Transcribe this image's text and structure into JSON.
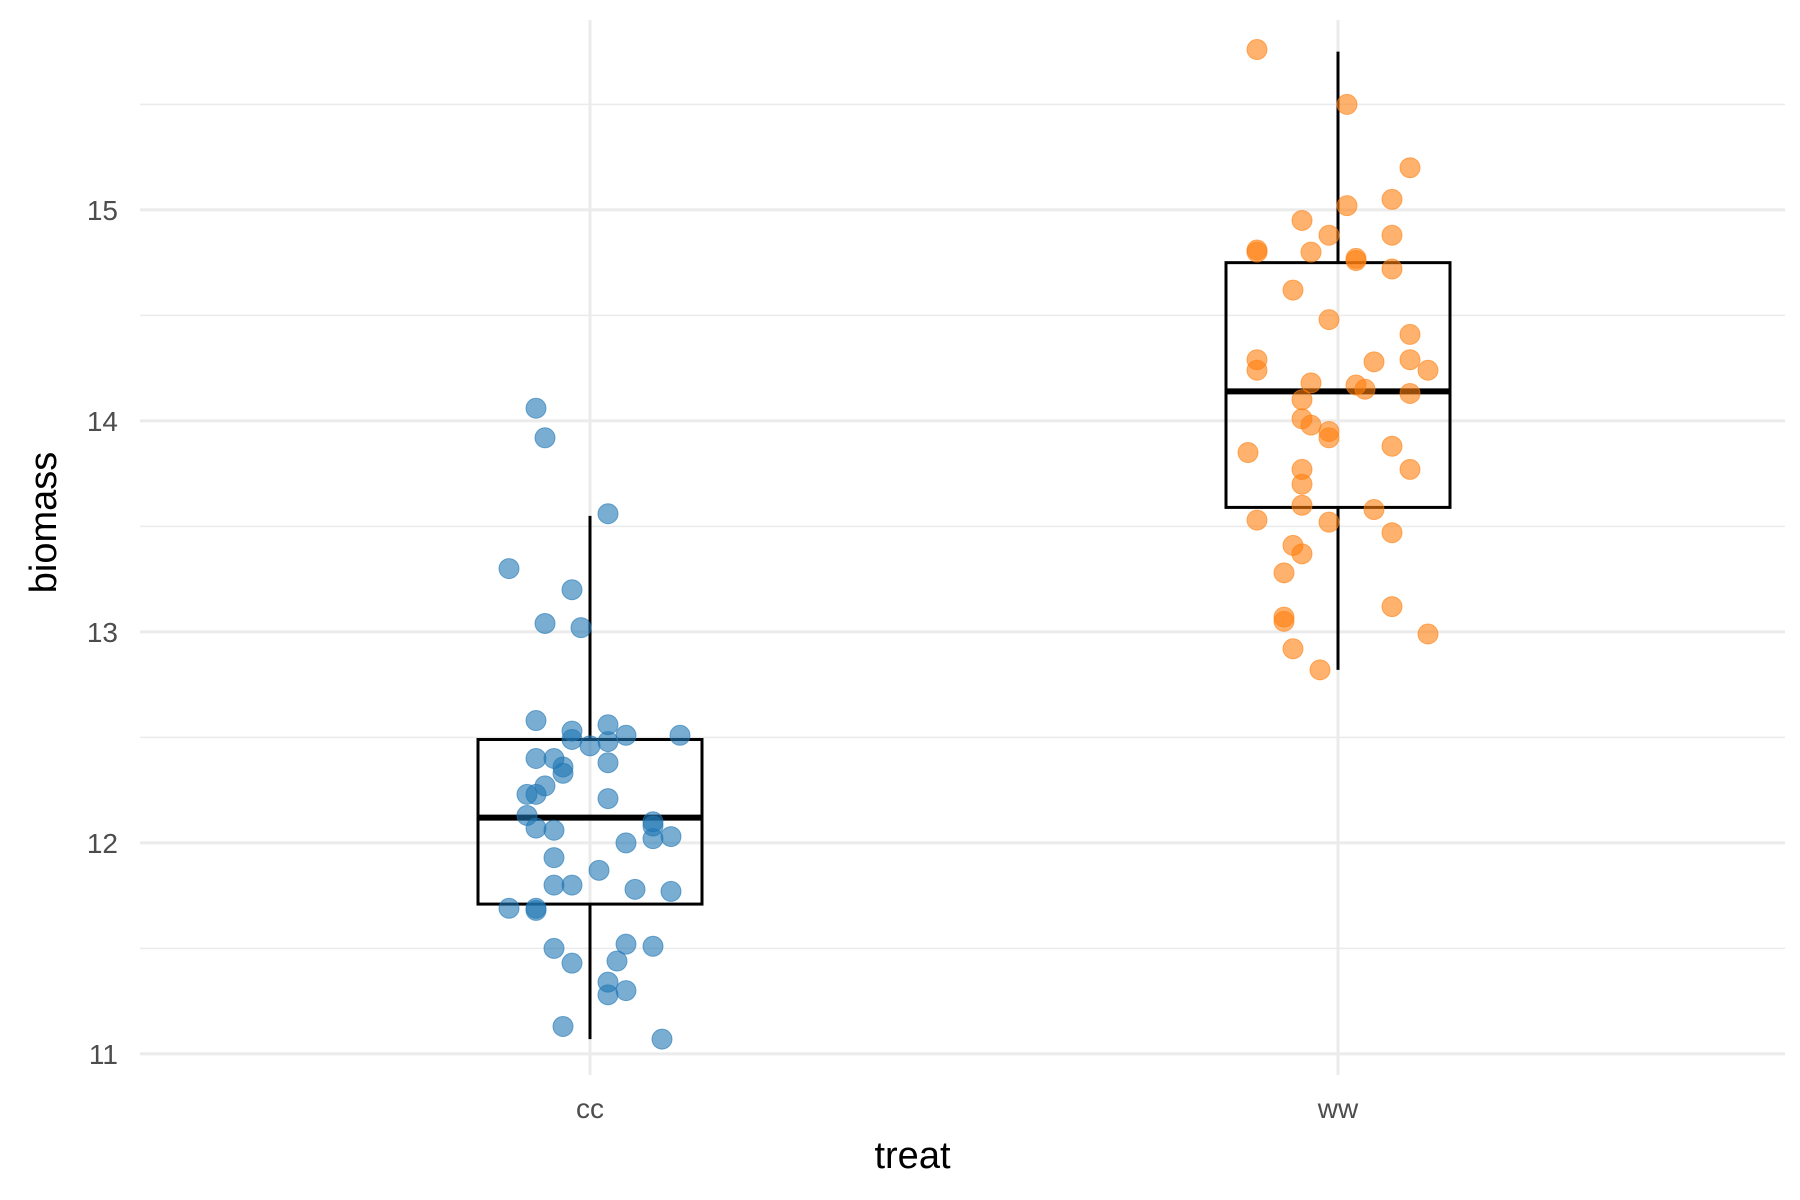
{
  "chart_data": {
    "type": "box-jitter",
    "xlabel": "treat",
    "ylabel": "biomass",
    "categories": [
      "cc",
      "ww"
    ],
    "ylim": [
      10.9,
      15.9
    ],
    "yticks": [
      11,
      12,
      13,
      14,
      15
    ],
    "grid": true,
    "legend": "none",
    "boxes": [
      {
        "category": "cc",
        "min": 11.07,
        "q1": 11.71,
        "median": 12.12,
        "q3": 12.49,
        "max": 13.55
      },
      {
        "category": "ww",
        "min": 12.82,
        "q1": 13.59,
        "median": 14.14,
        "q3": 14.75,
        "max": 15.75
      }
    ],
    "series": [
      {
        "category": "cc",
        "color": "#1f77b4",
        "points": [
          [
            -0.06,
            14.06
          ],
          [
            -0.05,
            13.92
          ],
          [
            0.02,
            13.56
          ],
          [
            -0.09,
            13.3
          ],
          [
            -0.02,
            13.2
          ],
          [
            -0.05,
            13.04
          ],
          [
            -0.01,
            13.02
          ],
          [
            -0.06,
            12.58
          ],
          [
            0.02,
            12.56
          ],
          [
            -0.02,
            12.53
          ],
          [
            0.04,
            12.51
          ],
          [
            0.1,
            12.51
          ],
          [
            -0.02,
            12.49
          ],
          [
            0.0,
            12.46
          ],
          [
            0.02,
            12.48
          ],
          [
            -0.06,
            12.4
          ],
          [
            -0.04,
            12.4
          ],
          [
            -0.03,
            12.36
          ],
          [
            0.02,
            12.38
          ],
          [
            -0.03,
            12.33
          ],
          [
            -0.05,
            12.27
          ],
          [
            -0.07,
            12.23
          ],
          [
            -0.06,
            12.23
          ],
          [
            0.02,
            12.21
          ],
          [
            -0.07,
            12.13
          ],
          [
            0.07,
            12.1
          ],
          [
            0.07,
            12.08
          ],
          [
            -0.06,
            12.07
          ],
          [
            -0.04,
            12.06
          ],
          [
            0.04,
            12.0
          ],
          [
            0.07,
            12.02
          ],
          [
            0.09,
            12.03
          ],
          [
            -0.04,
            11.93
          ],
          [
            0.01,
            11.87
          ],
          [
            -0.04,
            11.8
          ],
          [
            -0.02,
            11.8
          ],
          [
            0.05,
            11.78
          ],
          [
            0.09,
            11.77
          ],
          [
            -0.09,
            11.69
          ],
          [
            -0.06,
            11.68
          ],
          [
            -0.06,
            11.69
          ],
          [
            -0.04,
            11.5
          ],
          [
            0.04,
            11.52
          ],
          [
            0.07,
            11.51
          ],
          [
            -0.02,
            11.43
          ],
          [
            0.03,
            11.44
          ],
          [
            0.02,
            11.34
          ],
          [
            0.02,
            11.28
          ],
          [
            0.04,
            11.3
          ],
          [
            -0.03,
            11.13
          ],
          [
            0.08,
            11.07
          ]
        ]
      },
      {
        "category": "ww",
        "color": "#ff7f0e",
        "points": [
          [
            -0.09,
            15.76
          ],
          [
            0.01,
            15.5
          ],
          [
            0.08,
            15.2
          ],
          [
            0.06,
            15.05
          ],
          [
            0.01,
            15.02
          ],
          [
            -0.04,
            14.95
          ],
          [
            -0.01,
            14.88
          ],
          [
            0.06,
            14.88
          ],
          [
            -0.09,
            14.81
          ],
          [
            -0.09,
            14.8
          ],
          [
            -0.03,
            14.8
          ],
          [
            0.02,
            14.77
          ],
          [
            0.02,
            14.76
          ],
          [
            0.06,
            14.72
          ],
          [
            -0.05,
            14.62
          ],
          [
            -0.01,
            14.48
          ],
          [
            0.08,
            14.41
          ],
          [
            -0.09,
            14.29
          ],
          [
            -0.09,
            14.24
          ],
          [
            0.04,
            14.28
          ],
          [
            0.08,
            14.29
          ],
          [
            0.1,
            14.24
          ],
          [
            -0.03,
            14.18
          ],
          [
            0.02,
            14.17
          ],
          [
            0.03,
            14.15
          ],
          [
            0.08,
            14.13
          ],
          [
            -0.04,
            14.1
          ],
          [
            -0.04,
            14.01
          ],
          [
            -0.03,
            13.98
          ],
          [
            -0.01,
            13.95
          ],
          [
            -0.01,
            13.92
          ],
          [
            -0.1,
            13.85
          ],
          [
            0.06,
            13.88
          ],
          [
            -0.04,
            13.77
          ],
          [
            0.08,
            13.77
          ],
          [
            -0.04,
            13.7
          ],
          [
            -0.04,
            13.6
          ],
          [
            0.04,
            13.58
          ],
          [
            -0.09,
            13.53
          ],
          [
            -0.01,
            13.52
          ],
          [
            0.06,
            13.47
          ],
          [
            -0.05,
            13.41
          ],
          [
            -0.04,
            13.37
          ],
          [
            -0.06,
            13.28
          ],
          [
            0.06,
            13.12
          ],
          [
            -0.06,
            13.07
          ],
          [
            -0.06,
            13.05
          ],
          [
            0.1,
            12.99
          ],
          [
            -0.05,
            12.92
          ],
          [
            -0.02,
            12.82
          ]
        ]
      }
    ]
  }
}
